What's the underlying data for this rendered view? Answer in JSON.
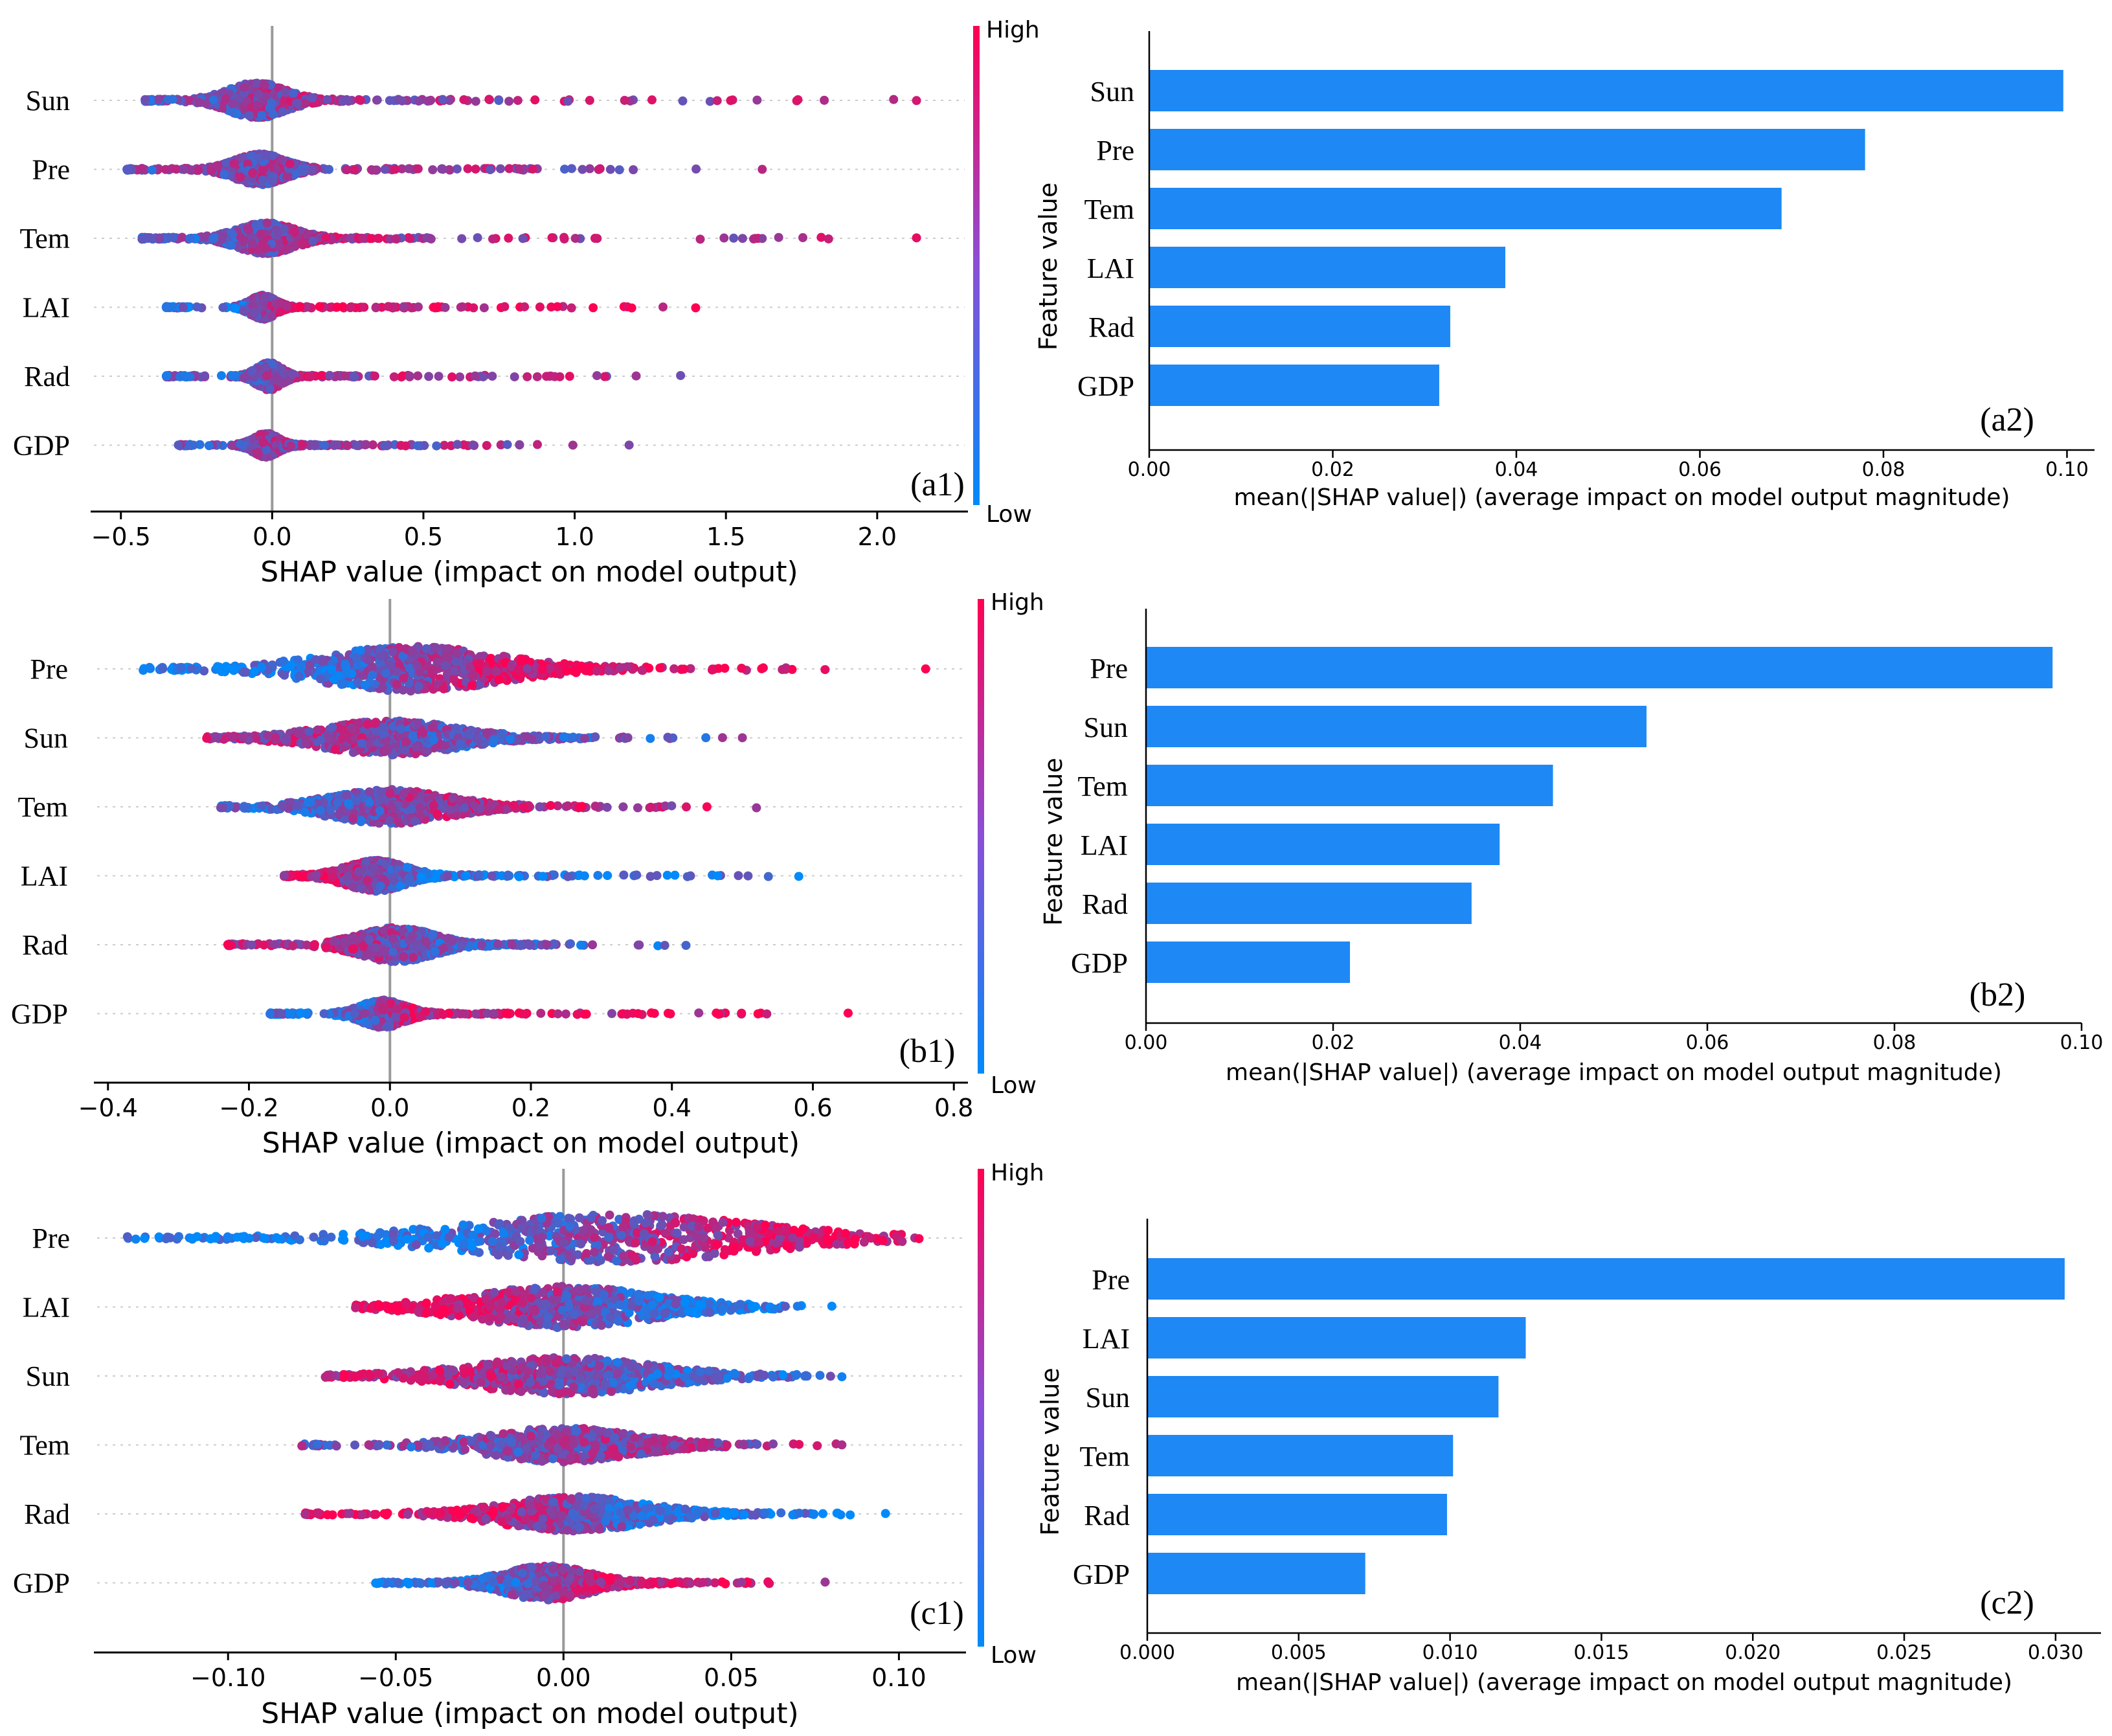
{
  "colors": {
    "low": "#008afb",
    "high": "#ff0052",
    "axis": "#000000",
    "zero": "#9a9a9a",
    "bar": "#1e88f5"
  },
  "colorbar": {
    "high_label": "High",
    "low_label": "Low"
  },
  "chart_data": [
    {
      "id": "a1",
      "type": "scatter",
      "subtype": "shap-beeswarm",
      "panel_label": "(a1)",
      "xlabel": "SHAP value (impact on model output)",
      "xlim": [
        -0.6,
        2.3
      ],
      "xticks": [
        -0.5,
        0.0,
        0.5,
        1.0,
        1.5,
        2.0
      ],
      "xtick_labels": [
        "−0.5",
        "0.0",
        "0.5",
        "1.0",
        "1.5",
        "2.0"
      ],
      "features": [
        "Sun",
        "Pre",
        "Tem",
        "LAI",
        "Rad",
        "GDP"
      ],
      "ranges": [
        [
          -0.42,
          2.13
        ],
        [
          -0.48,
          1.62
        ],
        [
          -0.43,
          2.13
        ],
        [
          -0.35,
          1.4
        ],
        [
          -0.35,
          1.35
        ],
        [
          -0.31,
          1.18
        ]
      ],
      "centers": [
        -0.05,
        -0.04,
        -0.02,
        -0.03,
        -0.01,
        -0.02
      ],
      "spreads": [
        0.09,
        0.08,
        0.09,
        0.04,
        0.04,
        0.04
      ],
      "widths": [
        0.52,
        0.45,
        0.45,
        0.35,
        0.4,
        0.35
      ],
      "trends": [
        0.2,
        0.1,
        0.3,
        0.7,
        0.3,
        0.1
      ]
    },
    {
      "id": "a2",
      "type": "bar",
      "orientation": "horizontal",
      "panel_label": "(a2)",
      "categories": [
        "Sun",
        "Pre",
        "Tem",
        "LAI",
        "Rad",
        "GDP"
      ],
      "values": [
        0.0996,
        0.078,
        0.0689,
        0.0388,
        0.0328,
        0.0316
      ],
      "xlabel": "mean(|SHAP value|) (average impact on model output magnitude)",
      "ylabel": "Feature value",
      "xlim": [
        0,
        0.103
      ],
      "xticks": [
        0.0,
        0.02,
        0.04,
        0.06,
        0.08,
        0.1
      ],
      "xtick_labels": [
        "0.00",
        "0.02",
        "0.04",
        "0.06",
        "0.08",
        "0.10"
      ]
    },
    {
      "id": "b1",
      "type": "scatter",
      "subtype": "shap-beeswarm",
      "panel_label": "(b1)",
      "xlabel": "SHAP value (impact on model output)",
      "xlim": [
        -0.42,
        0.82
      ],
      "xticks": [
        -0.4,
        -0.2,
        0.0,
        0.2,
        0.4,
        0.6,
        0.8
      ],
      "xtick_labels": [
        "−0.4",
        "−0.2",
        "0.0",
        "0.2",
        "0.4",
        "0.6",
        "0.8"
      ],
      "features": [
        "Pre",
        "Sun",
        "Tem",
        "LAI",
        "Rad",
        "GDP"
      ],
      "ranges": [
        [
          -0.35,
          0.76
        ],
        [
          -0.26,
          0.5
        ],
        [
          -0.24,
          0.52
        ],
        [
          -0.15,
          0.58
        ],
        [
          -0.23,
          0.42
        ],
        [
          -0.17,
          0.65
        ]
      ],
      "centers": [
        0.03,
        0.0,
        0.0,
        -0.02,
        0.01,
        -0.01
      ],
      "spreads": [
        0.12,
        0.09,
        0.08,
        0.04,
        0.05,
        0.03
      ],
      "widths": [
        0.65,
        0.5,
        0.5,
        0.45,
        0.5,
        0.4
      ],
      "trends": [
        0.9,
        -0.3,
        0.5,
        -0.7,
        -0.4,
        0.6
      ]
    },
    {
      "id": "b2",
      "type": "bar",
      "orientation": "horizontal",
      "panel_label": "(b2)",
      "categories": [
        "Pre",
        "Sun",
        "Tem",
        "LAI",
        "Rad",
        "GDP"
      ],
      "values": [
        0.0969,
        0.0535,
        0.0435,
        0.0378,
        0.0348,
        0.0218
      ],
      "xlabel": "mean(|SHAP value|) (average impact on model output magnitude)",
      "ylabel": "Feature value",
      "xlim": [
        0,
        0.1
      ],
      "xticks": [
        0.0,
        0.02,
        0.04,
        0.06,
        0.08,
        0.1
      ],
      "xtick_labels": [
        "0.00",
        "0.02",
        "0.04",
        "0.06",
        "0.08",
        "0.10"
      ]
    },
    {
      "id": "c1",
      "type": "scatter",
      "subtype": "shap-beeswarm",
      "panel_label": "(c1)",
      "xlabel": "SHAP value (impact on model output)",
      "xlim": [
        -0.14,
        0.12
      ],
      "xticks": [
        -0.1,
        -0.05,
        0.0,
        0.05,
        0.1
      ],
      "xtick_labels": [
        "−0.10",
        "−0.05",
        "0.00",
        "0.05",
        "0.10"
      ],
      "features": [
        "Pre",
        "LAI",
        "Sun",
        "Tem",
        "Rad",
        "GDP"
      ],
      "ranges": [
        [
          -0.13,
          0.106
        ],
        [
          -0.062,
          0.08
        ],
        [
          -0.071,
          0.083
        ],
        [
          -0.078,
          0.083
        ],
        [
          -0.077,
          0.096
        ],
        [
          -0.056,
          0.078
        ]
      ],
      "centers": [
        0.015,
        0.0,
        0.0,
        0.0,
        0.003,
        -0.005
      ],
      "spreads": [
        0.04,
        0.025,
        0.025,
        0.02,
        0.02,
        0.012
      ],
      "widths": [
        0.7,
        0.6,
        0.55,
        0.5,
        0.5,
        0.5
      ],
      "trends": [
        0.9,
        -0.9,
        -0.5,
        0.2,
        -0.8,
        0.7
      ]
    },
    {
      "id": "c2",
      "type": "bar",
      "orientation": "horizontal",
      "panel_label": "(c2)",
      "categories": [
        "Pre",
        "LAI",
        "Sun",
        "Tem",
        "Rad",
        "GDP"
      ],
      "values": [
        0.0303,
        0.0125,
        0.0116,
        0.0101,
        0.0099,
        0.0072
      ],
      "xlabel": "mean(|SHAP value|) (average impact on model output magnitude)",
      "ylabel": "Feature value",
      "xlim": [
        0,
        0.0315
      ],
      "xticks": [
        0.0,
        0.005,
        0.01,
        0.015,
        0.02,
        0.025,
        0.03
      ],
      "xtick_labels": [
        "0.000",
        "0.005",
        "0.010",
        "0.015",
        "0.020",
        "0.025",
        "0.030"
      ]
    }
  ]
}
